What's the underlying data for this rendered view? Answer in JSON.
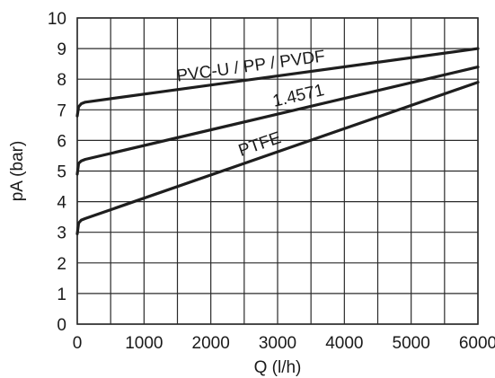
{
  "chart_data": {
    "type": "line",
    "title": "",
    "xlabel": "Q (l/h)",
    "ylabel": "pA (bar)",
    "xlim": [
      0,
      6000
    ],
    "ylim": [
      0,
      10
    ],
    "x_ticks": [
      0,
      1000,
      2000,
      3000,
      4000,
      5000,
      6000
    ],
    "y_ticks": [
      0,
      1,
      2,
      3,
      4,
      5,
      6,
      7,
      8,
      9,
      10
    ],
    "grid": true,
    "legend": "none",
    "series": [
      {
        "name": "PVC-U / PP / PVDF",
        "x": [
          0,
          20,
          60,
          120,
          6000
        ],
        "y": [
          6.8,
          7.1,
          7.2,
          7.25,
          9.0
        ]
      },
      {
        "name": "1.4571",
        "x": [
          0,
          20,
          60,
          120,
          6000
        ],
        "y": [
          4.9,
          5.25,
          5.33,
          5.38,
          8.4
        ]
      },
      {
        "name": "PTFE",
        "x": [
          0,
          20,
          60,
          120,
          6000
        ],
        "y": [
          2.95,
          3.3,
          3.4,
          3.45,
          7.9
        ]
      }
    ]
  }
}
